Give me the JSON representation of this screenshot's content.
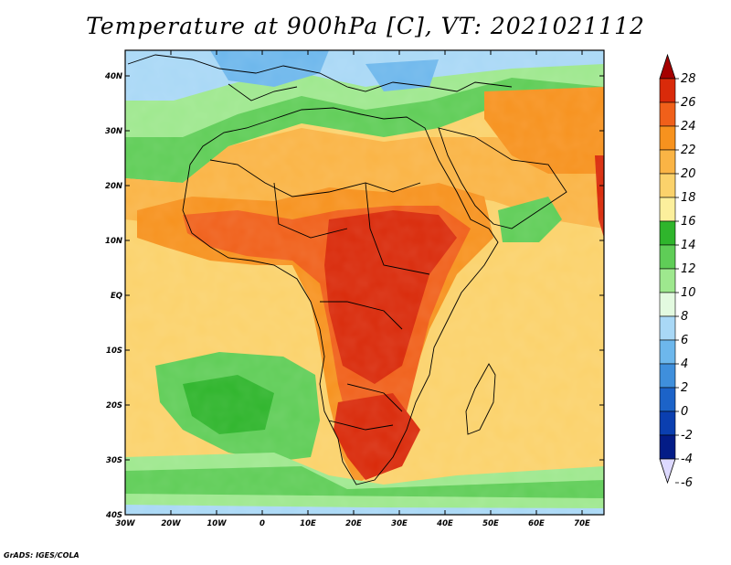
{
  "title": "Temperature at 900hPa [C], VT: 2021021112",
  "credit": "GrADS: IGES/COLA",
  "map": {
    "lat_ticks": [
      "40N",
      "30N",
      "20N",
      "10N",
      "EQ",
      "10S",
      "20S",
      "30S",
      "40S"
    ],
    "lon_ticks": [
      "30W",
      "20W",
      "10W",
      "0",
      "10E",
      "20E",
      "30E",
      "40E",
      "50E",
      "60E",
      "70E"
    ]
  },
  "colorbar": {
    "labels": [
      "28",
      "26",
      "24",
      "22",
      "20",
      "18",
      "16",
      "14",
      "12",
      "10",
      "8",
      "6",
      "4",
      "2",
      "0",
      "-2",
      "-4",
      "-6"
    ],
    "colors": [
      "#a50000",
      "#d92a0a",
      "#f0601a",
      "#f7921e",
      "#fab445",
      "#fbd26b",
      "#fcef9c",
      "#2fb52c",
      "#5fcd57",
      "#9ee88e",
      "#e3fae0",
      "#a9d8f6",
      "#6db7ec",
      "#3f8fdc",
      "#1c63c8",
      "#0b3fb0",
      "#031c87",
      "#ddd9ff"
    ]
  },
  "chart_data": {
    "type": "heatmap",
    "variable": "Temperature at 900hPa",
    "units": "C",
    "valid_time": "2021021112",
    "lon_range": [
      -30,
      75
    ],
    "lat_range": [
      -40,
      45
    ],
    "scale_range": [
      -6,
      28
    ],
    "scale_step": 2
  }
}
